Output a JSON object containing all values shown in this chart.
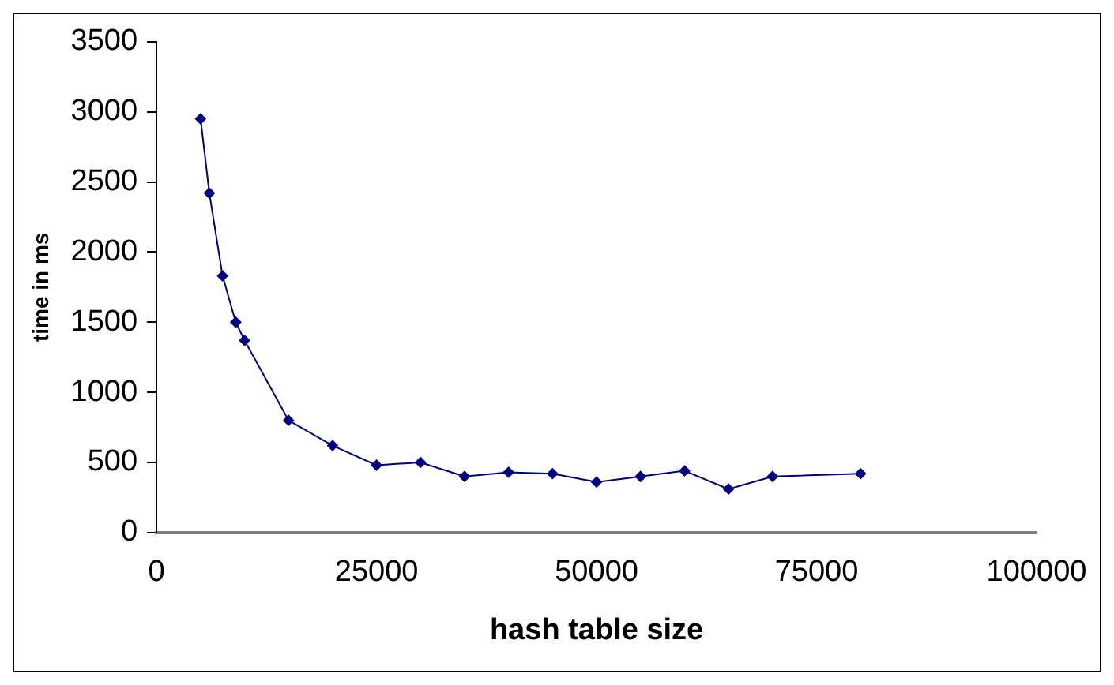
{
  "chart_data": {
    "type": "line",
    "xlabel": "hash table size",
    "ylabel": "time in ms",
    "x": [
      5000,
      6000,
      7500,
      9000,
      10000,
      15000,
      20000,
      25000,
      30000,
      35000,
      40000,
      45000,
      50000,
      55000,
      60000,
      65000,
      70000,
      80000
    ],
    "series": [
      {
        "color": "#000080",
        "values": [
          2950,
          2420,
          1830,
          1500,
          1370,
          800,
          620,
          480,
          500,
          400,
          430,
          420,
          360,
          400,
          440,
          310,
          400,
          420
        ]
      }
    ],
    "xlim": [
      0,
      100000
    ],
    "xticks": [
      0,
      25000,
      50000,
      75000,
      100000
    ],
    "ylim": [
      0,
      3500
    ],
    "yticks": [
      0,
      500,
      1000,
      1500,
      2000,
      2500,
      3000,
      3500
    ],
    "grid": false,
    "legend": false,
    "marker": "diamond",
    "line_style": "solid"
  }
}
